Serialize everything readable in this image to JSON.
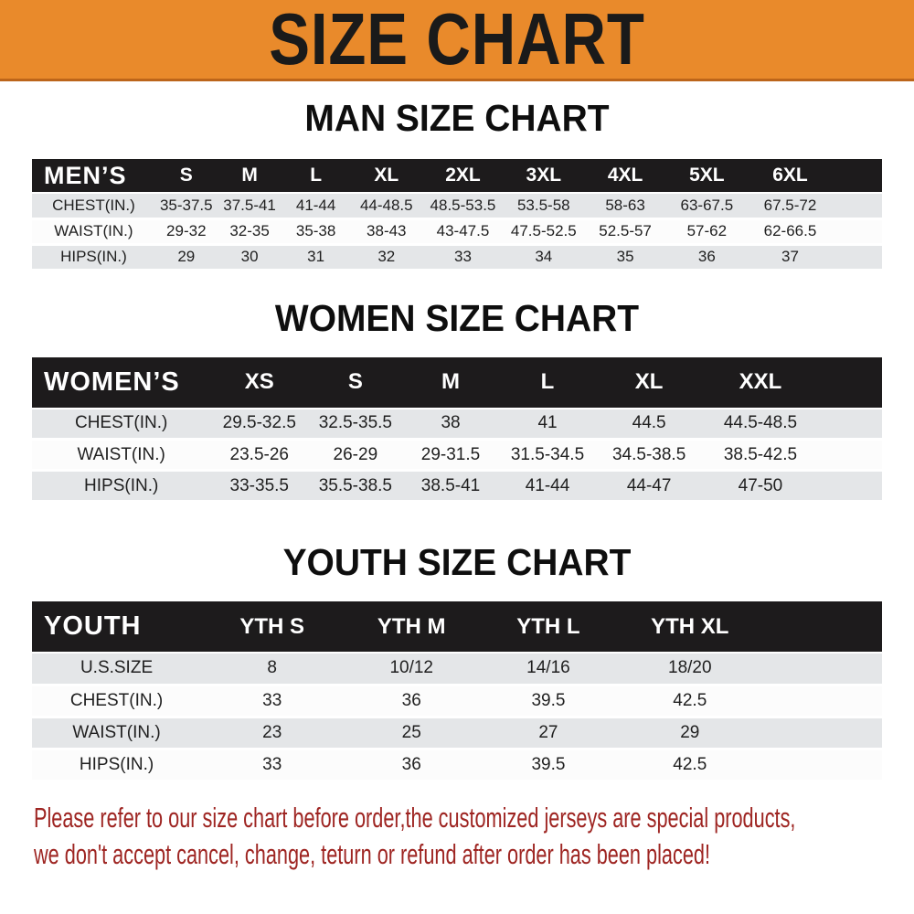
{
  "banner": {
    "title": "SIZE CHART"
  },
  "sections": [
    {
      "heading": "MAN SIZE CHART",
      "header_label": "MEN’S",
      "columns": [
        "S",
        "M",
        "L",
        "XL",
        "2XL",
        "3XL",
        "4XL",
        "5XL",
        "6XL"
      ],
      "rows": [
        {
          "label": "CHEST(IN.)",
          "values": [
            "35-37.5",
            "37.5-41",
            "41-44",
            "44-48.5",
            "48.5-53.5",
            "53.5-58",
            "58-63",
            "63-67.5",
            "67.5-72"
          ]
        },
        {
          "label": "WAIST(IN.)",
          "values": [
            "29-32",
            "32-35",
            "35-38",
            "38-43",
            "43-47.5",
            "47.5-52.5",
            "52.5-57",
            "57-62",
            "62-66.5"
          ]
        },
        {
          "label": "HIPS(IN.)",
          "values": [
            "29",
            "30",
            "31",
            "32",
            "33",
            "34",
            "35",
            "36",
            "37"
          ]
        }
      ]
    },
    {
      "heading": "WOMEN SIZE CHART",
      "header_label": "WOMEN’S",
      "columns": [
        "XS",
        "S",
        "M",
        "L",
        "XL",
        "XXL"
      ],
      "rows": [
        {
          "label": "CHEST(IN.)",
          "values": [
            "29.5-32.5",
            "32.5-35.5",
            "38",
            "41",
            "44.5",
            "44.5-48.5"
          ]
        },
        {
          "label": "WAIST(IN.)",
          "values": [
            "23.5-26",
            "26-29",
            "29-31.5",
            "31.5-34.5",
            "34.5-38.5",
            "38.5-42.5"
          ]
        },
        {
          "label": "HIPS(IN.)",
          "values": [
            "33-35.5",
            "35.5-38.5",
            "38.5-41",
            "41-44",
            "44-47",
            "47-50"
          ]
        }
      ]
    },
    {
      "heading": "YOUTH SIZE CHART",
      "header_label": "YOUTH",
      "columns": [
        "YTH S",
        "YTH M",
        "YTH L",
        "YTH XL"
      ],
      "rows": [
        {
          "label": "U.S.SIZE",
          "values": [
            "8",
            "10/12",
            "14/16",
            "18/20"
          ]
        },
        {
          "label": "CHEST(IN.)",
          "values": [
            "33",
            "36",
            "39.5",
            "42.5"
          ]
        },
        {
          "label": "WAIST(IN.)",
          "values": [
            "23",
            "25",
            "27",
            "29"
          ]
        },
        {
          "label": "HIPS(IN.)",
          "values": [
            "33",
            "36",
            "39.5",
            "42.5"
          ]
        }
      ]
    }
  ],
  "footer_note": {
    "lines": [
      "Please refer to our size chart before order,the customized jerseys are special products,",
      "we don't accept cancel, change, teturn or refund after order has been placed!"
    ]
  },
  "colors": {
    "banner_bg": "#e98a2b",
    "banner_border": "#bc651a",
    "banner_text": "#1a1a1a",
    "table_header_bg": "#1d1b1c",
    "table_header_text": "#ffffff",
    "row_stripe_gray": "#e4e6e8",
    "row_stripe_white": "#fcfcfc",
    "table_text": "#1f1f1f",
    "note_red": "#9e2522"
  }
}
